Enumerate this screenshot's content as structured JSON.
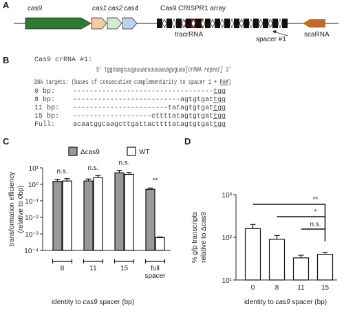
{
  "figure": {
    "panel_a": {
      "label": "A",
      "genes": [
        "cas9",
        "cas1",
        "cas2",
        "cas4"
      ],
      "tracrRNA": "tracrRNA",
      "array": "Cas9 CRISPR1 array",
      "spacer": "spacer #1",
      "scaRNA": "scaRNA"
    },
    "panel_b": {
      "label": "B",
      "crRNA_label": "Cas9 crRNA #1:",
      "crRNA": [
        "5' tggcaagcuug",
        "auuacuuuuuauaguguau[crRNA repeat]",
        " 3'"
      ],
      "targets_header": [
        "DNA targets: (bases of consecutive complementarity to spacer 1 + ",
        "PAM",
        ")"
      ],
      "targets": [
        {
          "label": "0 bp:",
          "sequence": "----------------------------------",
          "pam": "tgg"
        },
        {
          "label": "8 bp:",
          "sequence": "--------------------------agtgtgat",
          "pam": "tgg"
        },
        {
          "label": "11 bp:",
          "sequence": "-----------------------tatagtgtgat",
          "pam": "tgg"
        },
        {
          "label": "15 bp:",
          "sequence": "-------------------cttttatagtgtgat",
          "pam": "tgg"
        },
        {
          "label": "Full:",
          "sequence": "acaatggcaagcttgattacttttatagtgtgat",
          "pam": "tgg"
        }
      ]
    }
  },
  "chart_data": [
    {
      "type": "bar",
      "panel": "C",
      "log_scale": true,
      "ylabel": [
        "transformation efficiency",
        "(relative to 0bp)"
      ],
      "xlabel": [
        "identity to ",
        "cas9",
        " spacer (bp)"
      ],
      "categories": [
        "8",
        "11",
        "15",
        "full spacer"
      ],
      "series": [
        {
          "name": "Δcas9",
          "color": "#999999",
          "values": [
            1.5,
            1.6,
            5.0,
            0.5
          ],
          "errors": [
            0.5,
            0.5,
            2,
            0.1
          ]
        },
        {
          "name": "WT",
          "color": "#ffffff",
          "values": [
            1.6,
            2.6,
            4.0,
            0.0006
          ],
          "errors": [
            0.6,
            0.8,
            1.2,
            5e-05
          ]
        }
      ],
      "annotations": [
        "n.s.",
        "n.s.",
        "n.s.",
        "**"
      ],
      "ylim": [
        0.0001,
        10
      ],
      "yticks": [
        {
          "value": 10,
          "label": "10¹"
        },
        {
          "value": 1,
          "label": "10⁰"
        },
        {
          "value": 0.1,
          "label": "10⁻¹"
        },
        {
          "value": 0.01,
          "label": "10⁻²"
        },
        {
          "value": 0.001,
          "label": "10⁻³"
        },
        {
          "value": 0.0001,
          "label": "10⁻⁴"
        }
      ],
      "legend": "top"
    },
    {
      "type": "bar",
      "panel": "D",
      "log_scale": true,
      "ylabel": [
        "% gfp transcripts",
        "relative to Δcas9"
      ],
      "xlabel": [
        "identity to ",
        "cas9",
        " spacer (bp)"
      ],
      "categories": [
        "0",
        "8",
        "11",
        "15"
      ],
      "series": [
        {
          "color": "#ffffff",
          "values": [
            160,
            90,
            33,
            40
          ],
          "errors": [
            40,
            20,
            5,
            4
          ]
        }
      ],
      "comparisons": [
        {
          "label": "**",
          "between": [
            "0",
            "15"
          ]
        },
        {
          "label": "*",
          "between": [
            "8",
            "15"
          ]
        },
        {
          "label": "n.s.",
          "between": [
            "11",
            "15"
          ]
        }
      ],
      "ylim": [
        10,
        1000
      ],
      "yticks": [
        {
          "value": 1000,
          "label": "10³"
        },
        {
          "value": 100,
          "label": "10²"
        },
        {
          "value": 10,
          "label": "10¹"
        }
      ]
    }
  ]
}
